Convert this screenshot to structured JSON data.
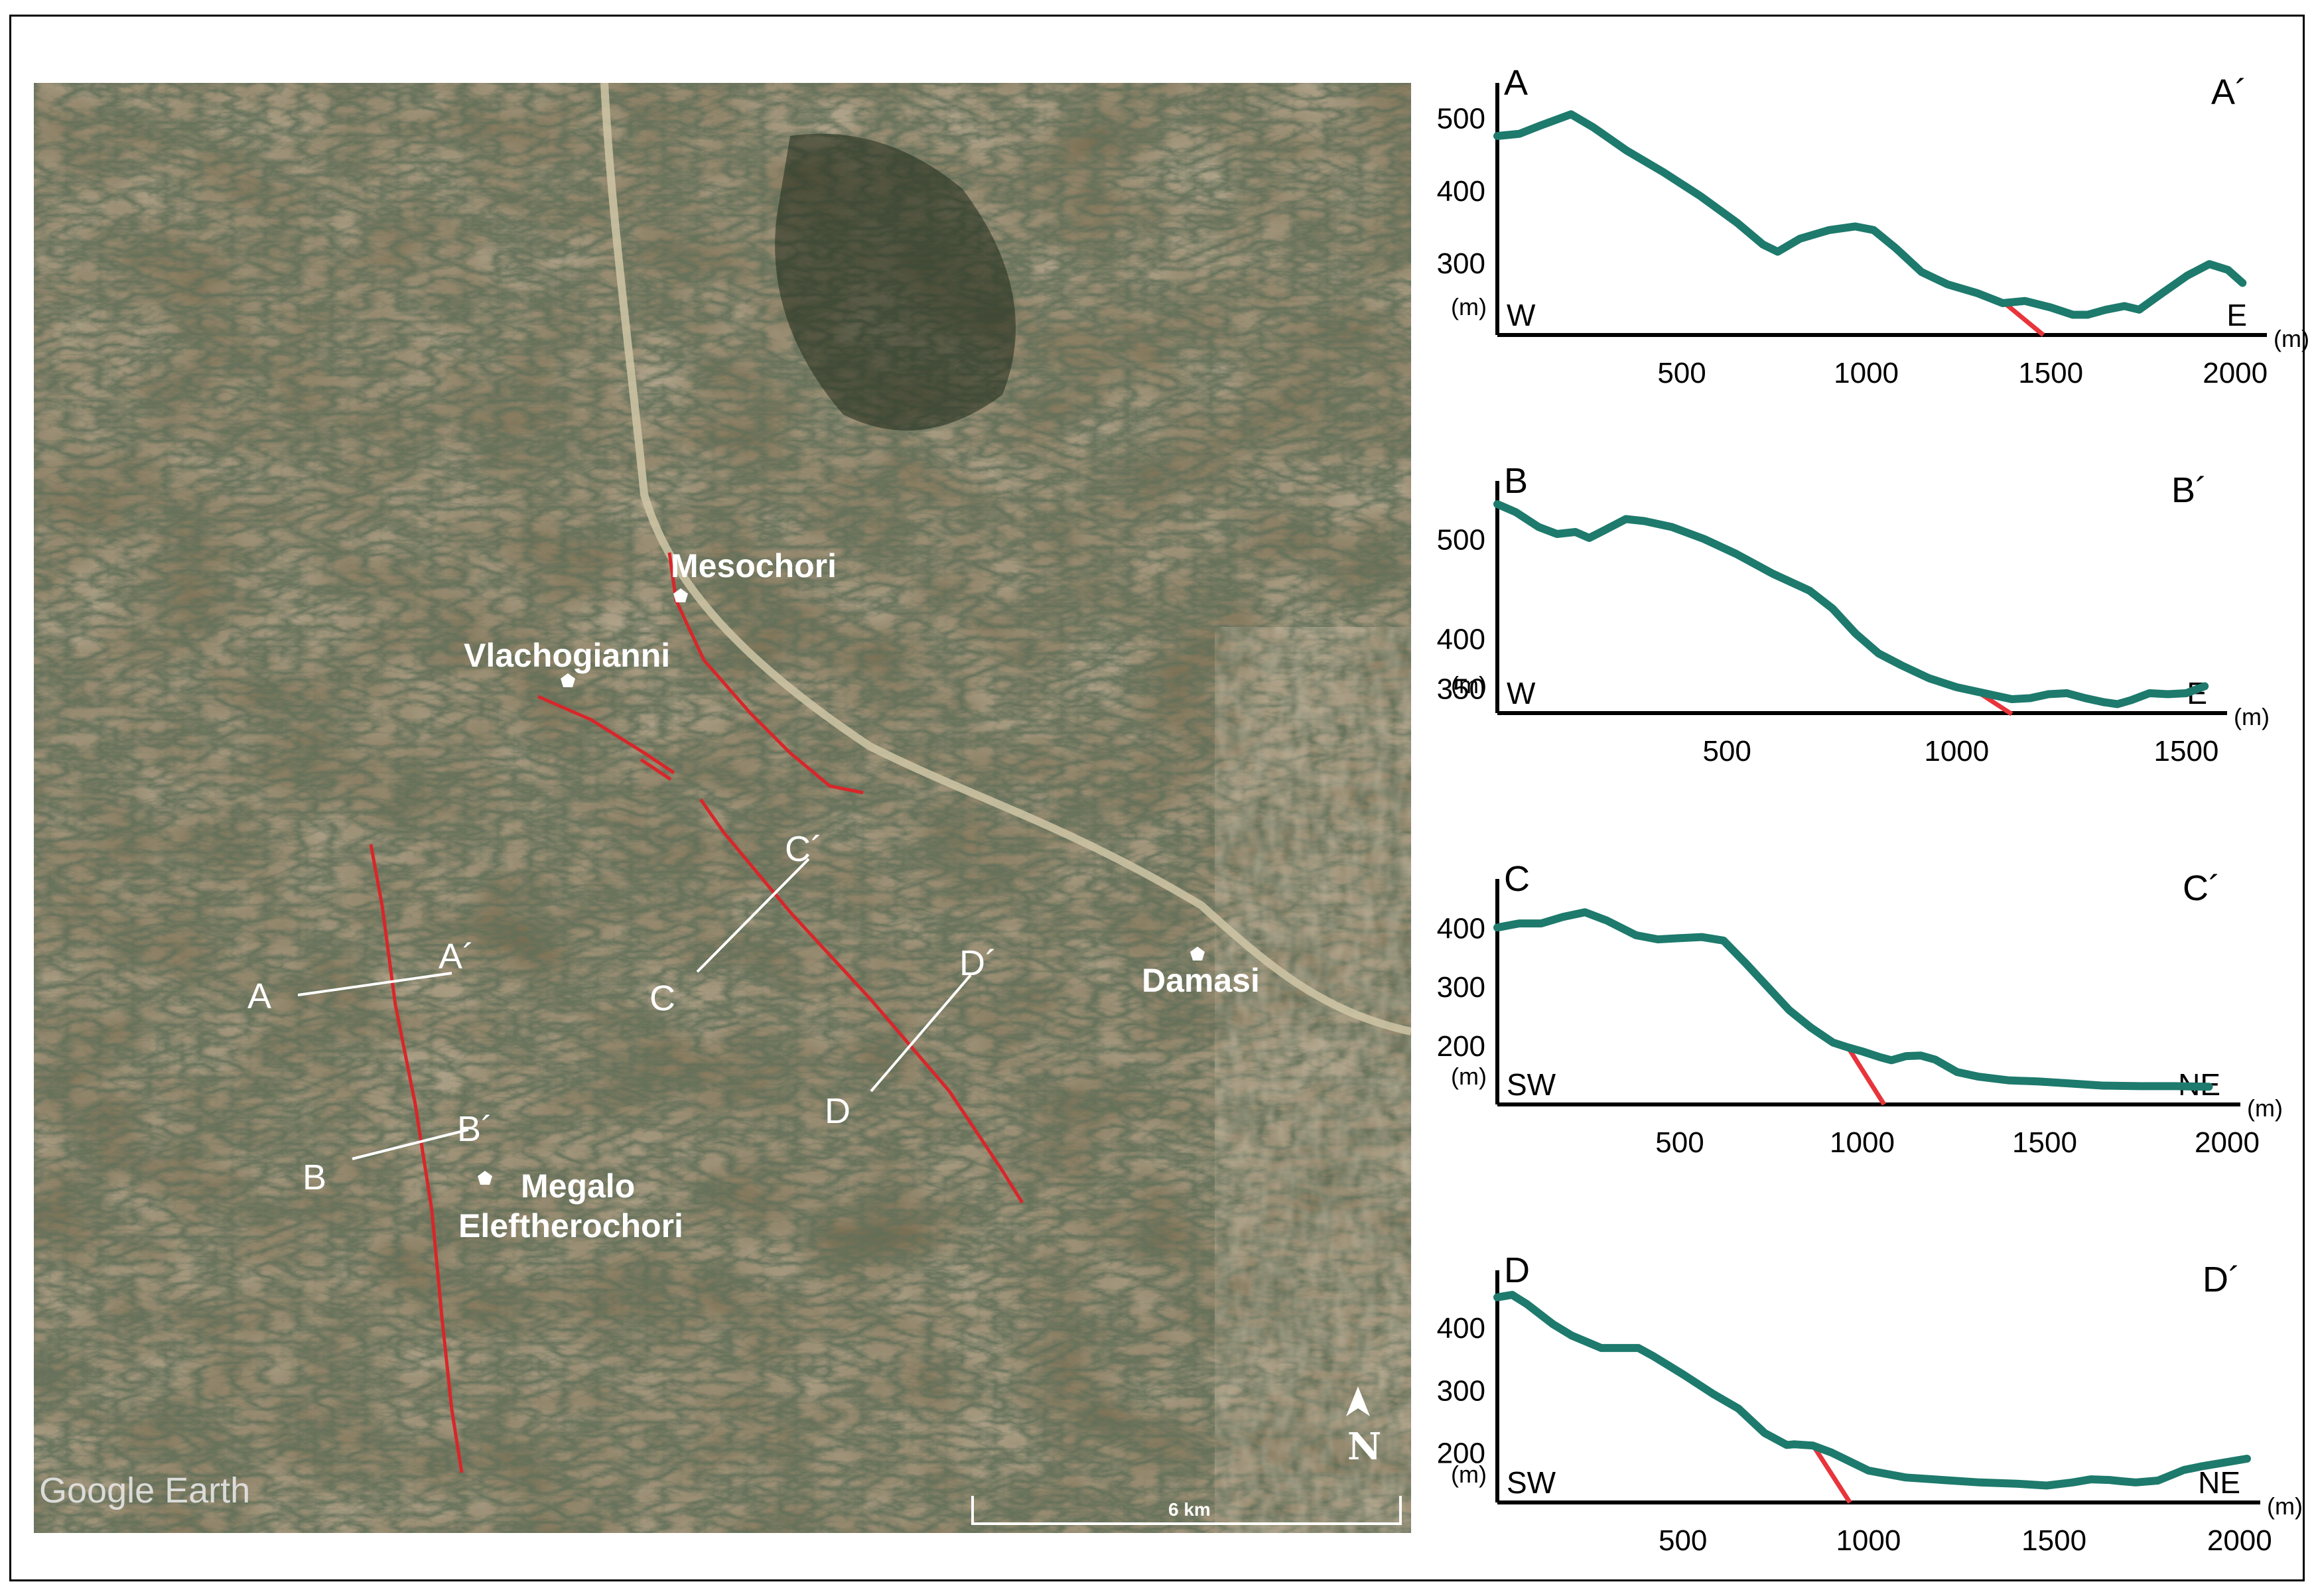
{
  "map": {
    "watermark": "Google Earth",
    "north_label": "N",
    "scale_label": "6 km",
    "places": [
      {
        "name": "Mesochori"
      },
      {
        "name": "Vlachogianni"
      },
      {
        "name": "Damasi"
      },
      {
        "name": "Megalo Eleftherochori"
      }
    ],
    "profile_labels": [
      "A",
      "A´",
      "B",
      "B´",
      "C",
      "C´",
      "D",
      "D´"
    ],
    "colors": {
      "fault": "#d8262a",
      "label": "#ffffff",
      "terrain": "#6a5b3e"
    }
  },
  "chart_data": [
    {
      "type": "line",
      "start_label": "A",
      "end_label": "A´",
      "left_dir": "W",
      "right_dir": "E",
      "ylabel": "(m)",
      "xlabel": "(m)",
      "xticks": [
        500,
        1000,
        1500,
        2000
      ],
      "yticks": [
        300,
        400,
        500
      ],
      "xlim": [
        0,
        2050
      ],
      "ylim": [
        200,
        530
      ],
      "x": [
        0,
        60,
        120,
        200,
        260,
        350,
        450,
        550,
        650,
        720,
        760,
        820,
        900,
        970,
        1020,
        1080,
        1150,
        1220,
        1300,
        1370,
        1430,
        1500,
        1560,
        1600,
        1650,
        1700,
        1740,
        1800,
        1870,
        1930,
        1980,
        2020
      ],
      "y": [
        475,
        478,
        490,
        505,
        487,
        455,
        425,
        392,
        355,
        325,
        315,
        333,
        345,
        350,
        345,
        320,
        287,
        270,
        258,
        244,
        247,
        238,
        228,
        228,
        235,
        240,
        235,
        257,
        282,
        298,
        290,
        272
      ],
      "fault": {
        "x": [
          1380,
          1480
        ],
        "y": [
          242,
          200
        ]
      },
      "line_color": "#1d7a6c",
      "fault_color": "#e8343b"
    },
    {
      "type": "line",
      "start_label": "B",
      "end_label": "B´",
      "left_dir": "W",
      "right_dir": "E",
      "ylabel": "(m)",
      "xlabel": "(m)",
      "xticks": [
        500,
        1000,
        1500
      ],
      "yticks": [
        350,
        400,
        500
      ],
      "xlim": [
        0,
        1560
      ],
      "ylim": [
        325,
        545
      ],
      "x": [
        0,
        40,
        90,
        130,
        170,
        200,
        230,
        280,
        320,
        380,
        450,
        520,
        600,
        680,
        730,
        780,
        830,
        880,
        940,
        1000,
        1050,
        1080,
        1120,
        1160,
        1200,
        1240,
        1280,
        1320,
        1350,
        1380,
        1420,
        1460,
        1500,
        1540
      ],
      "y": [
        535,
        527,
        512,
        505,
        507,
        501,
        508,
        520,
        518,
        512,
        500,
        485,
        465,
        448,
        430,
        405,
        385,
        373,
        360,
        351,
        346,
        343,
        339,
        340,
        344,
        345,
        340,
        336,
        334,
        338,
        345,
        344,
        345,
        352
      ],
      "fault": {
        "x": [
          1040,
          1120
        ],
        "y": [
          348,
          324
        ]
      },
      "line_color": "#1d7a6c",
      "fault_color": "#e8343b"
    },
    {
      "type": "line",
      "start_label": "C",
      "end_label": "C´",
      "left_dir": "SW",
      "right_dir": "NE",
      "ylabel": "(m)",
      "xlabel": "(m)",
      "xticks": [
        500,
        1000,
        1500,
        2000
      ],
      "yticks": [
        200,
        300,
        400
      ],
      "xlim": [
        0,
        2000
      ],
      "ylim": [
        100,
        460
      ],
      "x": [
        0,
        60,
        120,
        180,
        240,
        300,
        380,
        440,
        500,
        560,
        620,
        680,
        740,
        800,
        860,
        920,
        960,
        1000,
        1050,
        1080,
        1120,
        1160,
        1200,
        1260,
        1320,
        1400,
        1480,
        1560,
        1660,
        1760,
        1860,
        1950
      ],
      "y": [
        400,
        407,
        407,
        418,
        426,
        412,
        387,
        380,
        382,
        384,
        378,
        340,
        300,
        260,
        230,
        205,
        197,
        190,
        180,
        175,
        182,
        183,
        176,
        155,
        147,
        141,
        139,
        136,
        132,
        131,
        131,
        130
      ],
      "fault": {
        "x": [
          960,
          1060
        ],
        "y": [
          198,
          100
        ]
      },
      "line_color": "#1d7a6c",
      "fault_color": "#e8343b"
    },
    {
      "type": "line",
      "start_label": "D",
      "end_label": "D´",
      "left_dir": "SW",
      "right_dir": "NE",
      "ylabel": "(m)",
      "xlabel": "(m)",
      "xticks": [
        500,
        1000,
        1500,
        2000
      ],
      "yticks": [
        200,
        300,
        400
      ],
      "xlim": [
        0,
        2020
      ],
      "ylim": [
        120,
        470
      ],
      "x": [
        0,
        40,
        80,
        150,
        200,
        280,
        380,
        420,
        500,
        580,
        650,
        720,
        780,
        800,
        850,
        900,
        1000,
        1100,
        1200,
        1300,
        1400,
        1480,
        1550,
        1600,
        1650,
        1680,
        1720,
        1780,
        1850,
        1900,
        1980,
        2020
      ],
      "y": [
        448,
        452,
        437,
        405,
        387,
        367,
        367,
        354,
        325,
        294,
        270,
        231,
        212,
        213,
        211,
        200,
        171,
        160,
        156,
        152,
        150,
        147,
        152,
        157,
        156,
        154,
        152,
        155,
        172,
        178,
        186,
        190
      ],
      "fault": {
        "x": [
          850,
          950
        ],
        "y": [
          212,
          120
        ]
      },
      "line_color": "#1d7a6c",
      "fault_color": "#e8343b"
    }
  ]
}
